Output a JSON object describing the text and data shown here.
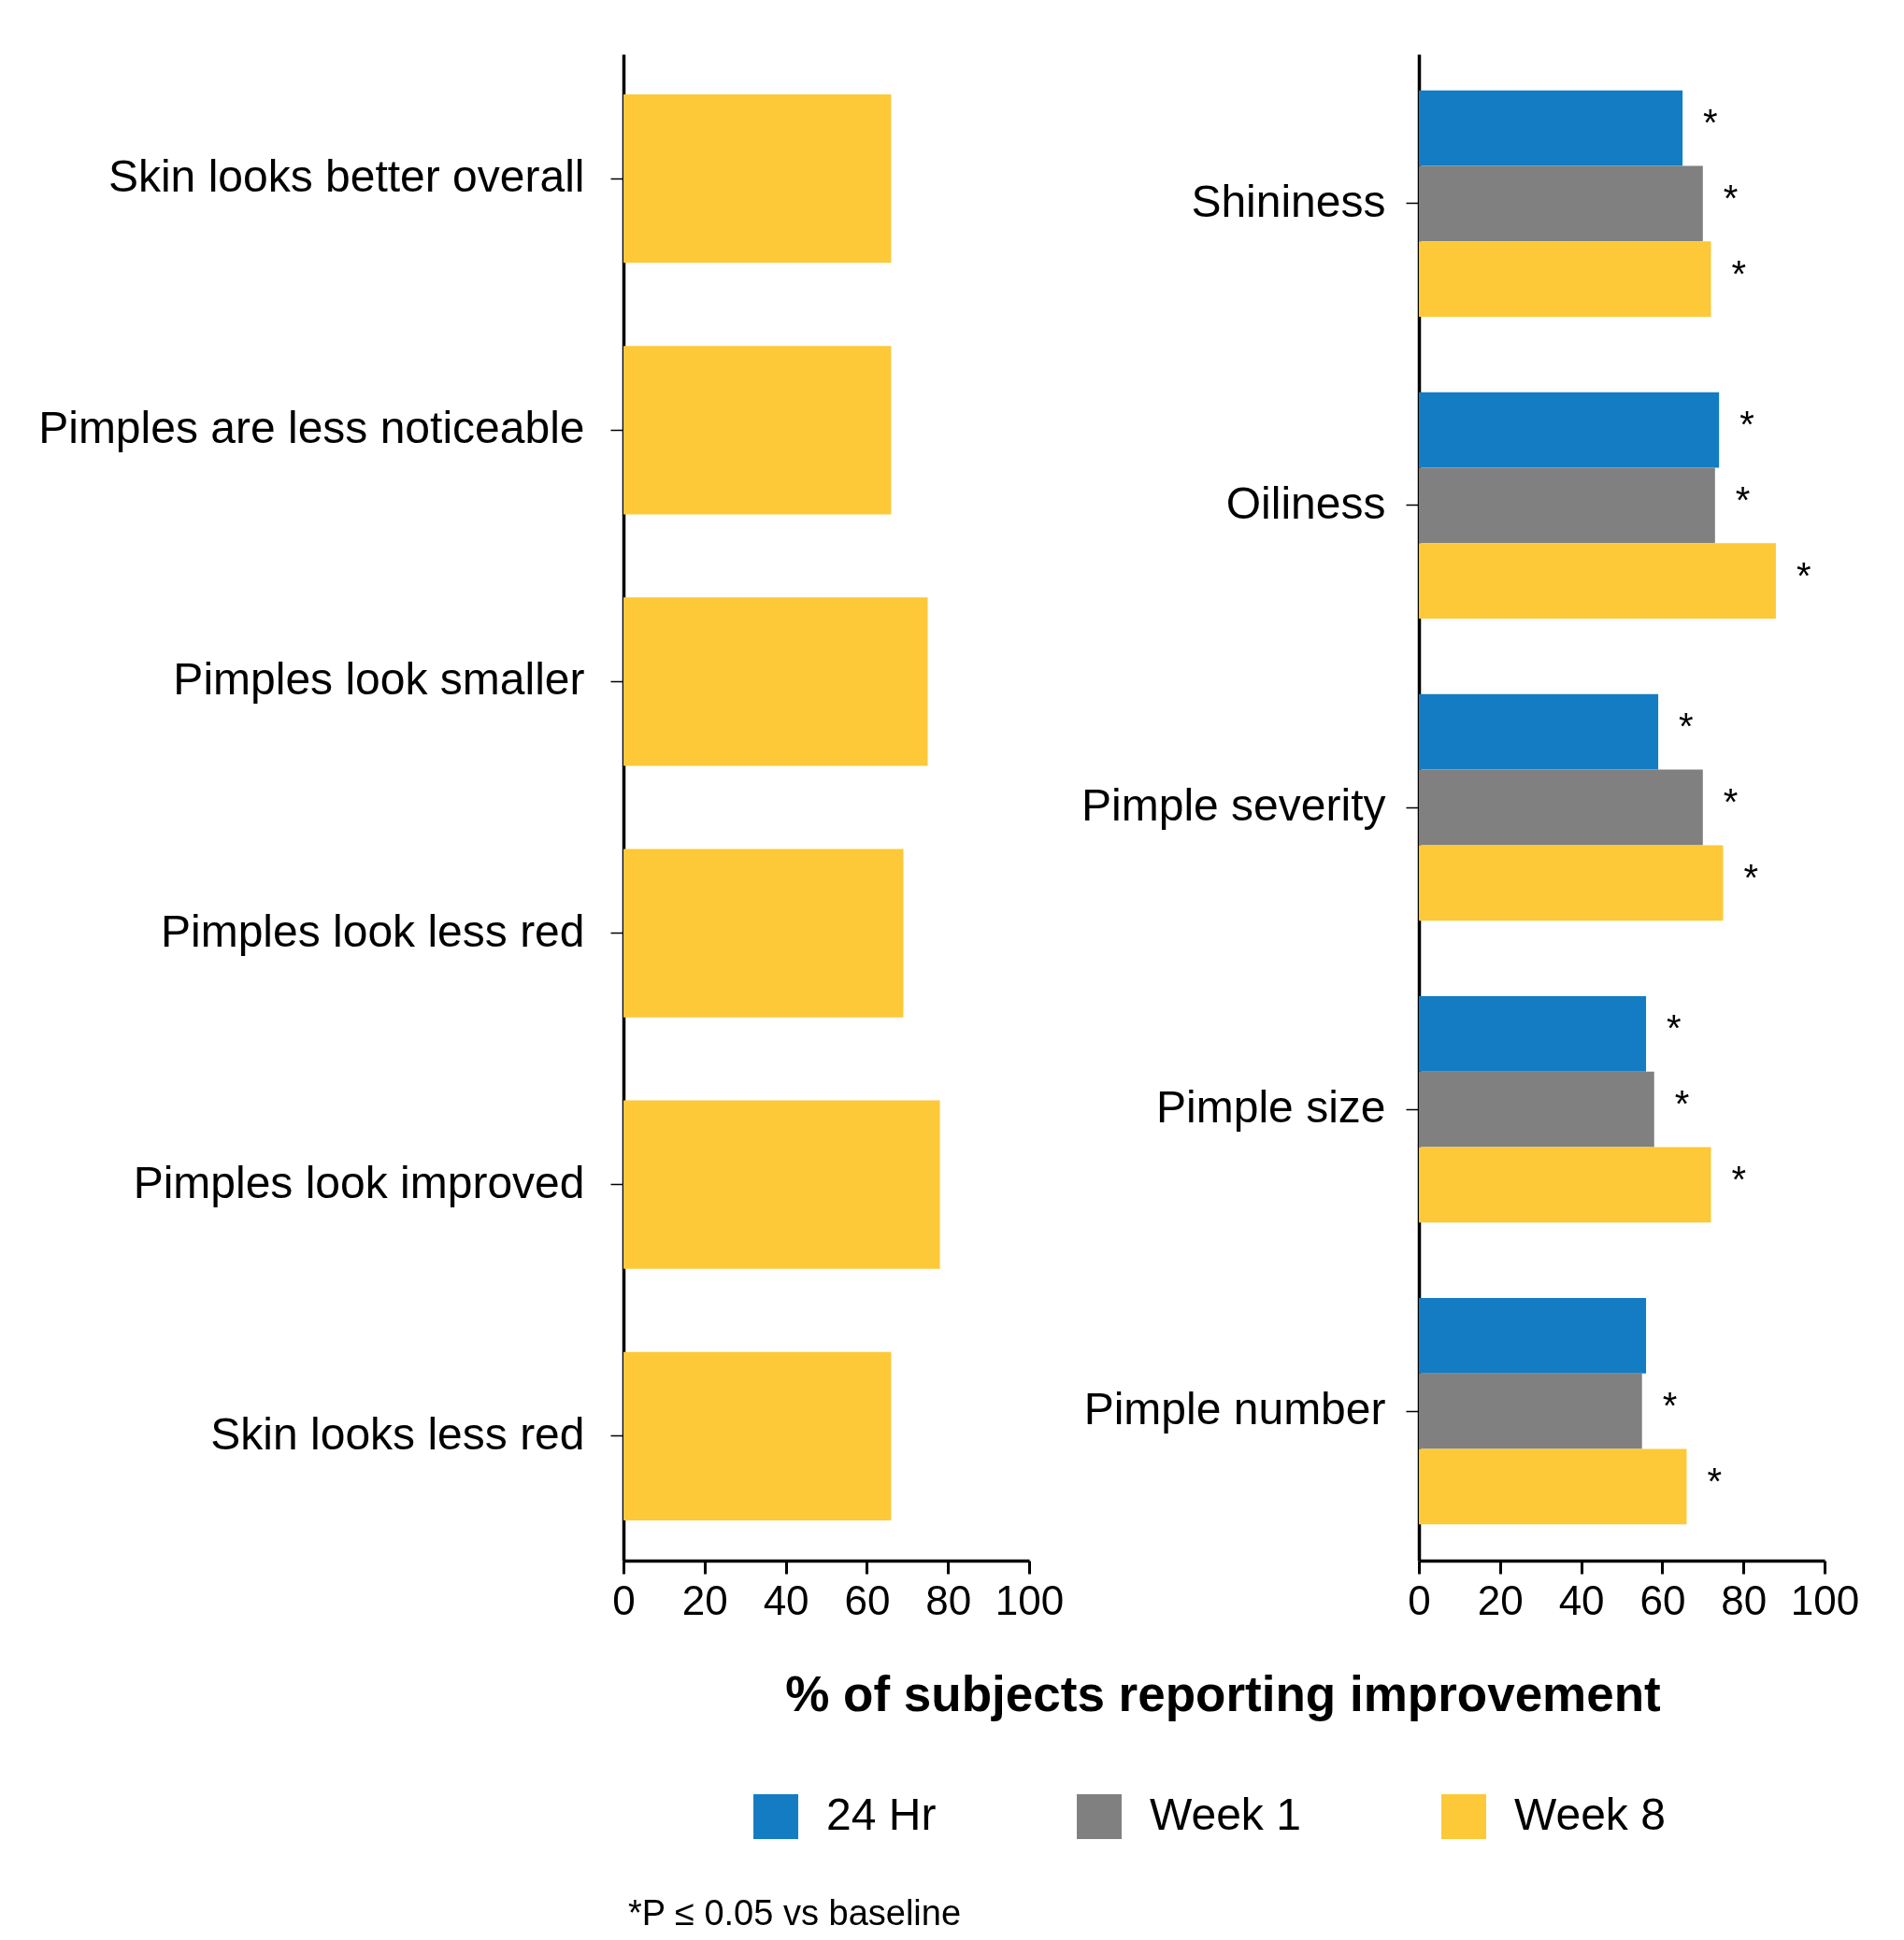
{
  "chart_data": [
    {
      "type": "bar",
      "orientation": "horizontal",
      "categories": [
        "Skin looks better overall",
        "Pimples are less noticeable",
        "Pimples look smaller",
        "Pimples look less red",
        "Pimples look improved",
        "Skin looks less red"
      ],
      "values": [
        66,
        66,
        75,
        69,
        78,
        66
      ],
      "color": "#fdc939",
      "xlim": [
        0,
        100
      ],
      "xticks": [
        0,
        20,
        40,
        60,
        80,
        100
      ],
      "grid": false
    },
    {
      "type": "bar",
      "orientation": "horizontal",
      "categories": [
        "Shininess",
        "Oiliness",
        "Pimple severity",
        "Pimple size",
        "Pimple number"
      ],
      "series": [
        {
          "name": "24 Hr",
          "color": "#147cc3",
          "values": [
            65,
            74,
            59,
            56,
            56
          ],
          "value_labels": [
            "*",
            "*",
            "*",
            "*",
            null
          ]
        },
        {
          "name": "Week 1",
          "color": "#808080",
          "values": [
            70,
            73,
            70,
            58,
            55
          ],
          "value_labels": [
            "*",
            "*",
            "*",
            "*",
            "*"
          ]
        },
        {
          "name": "Week 8",
          "color": "#fdc939",
          "values": [
            72,
            88,
            75,
            72,
            66
          ],
          "value_labels": [
            "*",
            "*",
            "*",
            "*",
            "*"
          ]
        }
      ],
      "xlim": [
        0,
        100
      ],
      "xticks": [
        0,
        20,
        40,
        60,
        80,
        100
      ],
      "grid": false,
      "legend": "bottom",
      "xlabel": "% of subjects reporting improvement",
      "annotations": [
        "*P ≤ 0.05 vs baseline"
      ]
    }
  ]
}
